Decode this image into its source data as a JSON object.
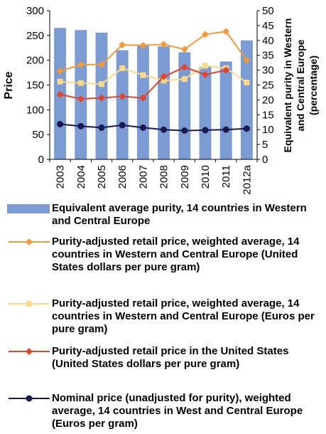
{
  "chart_data": {
    "type": "bar+line",
    "categories": [
      "2003",
      "2004",
      "2005",
      "2006",
      "2007",
      "2008",
      "2009",
      "2010",
      "2011",
      "2012a"
    ],
    "y_left": {
      "label": "Price",
      "min": 0,
      "max": 300,
      "ticks": [
        0,
        50,
        100,
        150,
        200,
        250,
        300
      ]
    },
    "y_right": {
      "label": "Equivalent purity in Western and  Central Europe (percentage)",
      "min": 0,
      "max": 50,
      "ticks": [
        0,
        5,
        10,
        15,
        20,
        25,
        30,
        35,
        40,
        45,
        50
      ]
    },
    "grid": false,
    "legend_position": "bottom",
    "bars": {
      "name": "Equivalent average purity, 14 countries in Western and Central Europe",
      "axis": "right",
      "color": "#7b9bd2",
      "values": [
        44.2,
        43.5,
        42.6,
        36.7,
        38.2,
        38.0,
        36.0,
        31.1,
        32.9,
        40.0
      ]
    },
    "series": [
      {
        "name": "Purity-adjusted retail price, weighted average, 14 countries in Western and Central Europe (United States dollars per pure gram)",
        "axis": "left",
        "color": "#f39a3e",
        "marker": "diamond",
        "values": [
          178,
          191,
          191,
          231,
          230,
          232,
          222,
          252,
          258,
          200
        ]
      },
      {
        "name": "Purity-adjusted retail price, weighted average, 14 countries in Western and Central Europe (Euros per pure gram)",
        "axis": "left",
        "color": "#fbd98a",
        "marker": "square",
        "values": [
          157,
          154,
          152,
          184,
          170,
          159,
          162,
          189,
          184,
          155
        ]
      },
      {
        "name": "Purity-adjusted retail price in the United States (United States dollars per pure gram)",
        "axis": "left",
        "color": "#e0442c",
        "marker": "diamond",
        "values": [
          131,
          122,
          124,
          127,
          124,
          167,
          186,
          171,
          180,
          null
        ]
      },
      {
        "name": "Nominal price (unadjusted for purity), weighted average, 14 countries in West and Central Europe (Euros per gram)",
        "axis": "left",
        "color": "#1a1a4e",
        "marker": "circle",
        "values": [
          71,
          67,
          64,
          69,
          64,
          60,
          58,
          59,
          60,
          62
        ]
      }
    ]
  },
  "legend": [
    {
      "text": "Equivalent average purity, 14 countries in Western and Central Europe"
    },
    {
      "text": "Purity-adjusted retail price, weighted average, 14 countries in Western and Central Europe (United States dollars per pure gram)"
    },
    {
      "text": "Purity-adjusted retail price, weighted average, 14 countries in Western and Central Europe (Euros per pure gram)"
    },
    {
      "text": "Purity-adjusted retail price in the United States (United States dollars per pure gram)"
    },
    {
      "text": "Nominal price (unadjusted for purity), weighted average, 14 countries in West and Central Europe (Euros per gram)"
    }
  ]
}
